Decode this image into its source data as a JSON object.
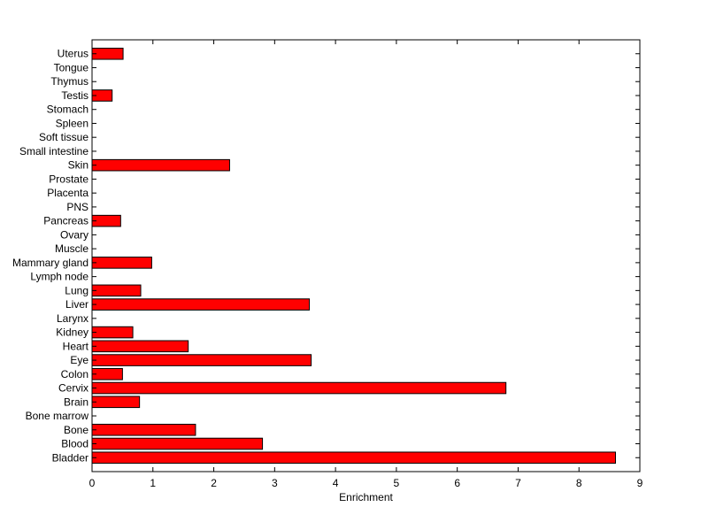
{
  "chart_data": {
    "type": "bar",
    "orientation": "horizontal",
    "title": "",
    "xlabel": "Enrichment",
    "ylabel": "",
    "xlim": [
      0,
      9
    ],
    "xticks": [
      0,
      1,
      2,
      3,
      4,
      5,
      6,
      7,
      8,
      9
    ],
    "grid": false,
    "legend": "none",
    "bar_color": "#ff0000",
    "categories": [
      "Bladder",
      "Blood",
      "Bone",
      "Bone marrow",
      "Brain",
      "Cervix",
      "Colon",
      "Eye",
      "Heart",
      "Kidney",
      "Larynx",
      "Liver",
      "Lung",
      "Lymph node",
      "Mammary gland",
      "Muscle",
      "Ovary",
      "Pancreas",
      "PNS",
      "Placenta",
      "Prostate",
      "Skin",
      "Small intestine",
      "Soft tissue",
      "Spleen",
      "Stomach",
      "Testis",
      "Thymus",
      "Tongue",
      "Uterus"
    ],
    "values": [
      8.6,
      2.8,
      1.7,
      0,
      0.78,
      6.8,
      0.5,
      3.6,
      1.58,
      0.67,
      0,
      3.57,
      0.8,
      0,
      0.98,
      0,
      0,
      0.47,
      0,
      0,
      0,
      2.26,
      0,
      0,
      0,
      0,
      0.33,
      0,
      0,
      0.51
    ]
  }
}
